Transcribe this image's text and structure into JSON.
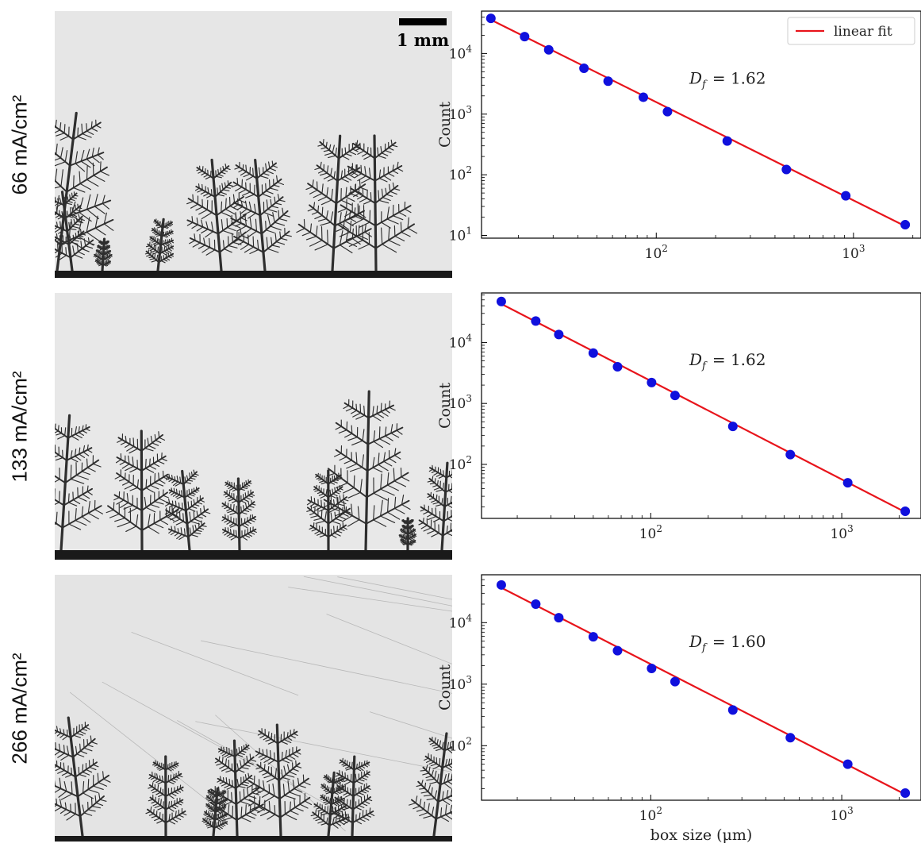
{
  "scale_bar": {
    "label": "1 mm"
  },
  "rows": [
    {
      "label": "66 mA/cm²"
    },
    {
      "label": "133 mA/cm²"
    },
    {
      "label": "266 mA/cm²"
    }
  ],
  "chart_data": [
    {
      "type": "scatter",
      "title": "",
      "xlabel": "",
      "ylabel": "Count",
      "xscale": "log",
      "yscale": "log",
      "xlim": [
        13,
        2200
      ],
      "ylim": [
        9,
        50000
      ],
      "x_ticks": [
        {
          "value": 100,
          "base": "10",
          "exp": "2"
        },
        {
          "value": 1000,
          "base": "10",
          "exp": "3"
        }
      ],
      "y_ticks": [
        {
          "value": 10,
          "base": "10",
          "exp": "1"
        },
        {
          "value": 100,
          "base": "10",
          "exp": "2"
        },
        {
          "value": 1000,
          "base": "10",
          "exp": "3"
        },
        {
          "value": 10000,
          "base": "10",
          "exp": "4"
        }
      ],
      "annotation": {
        "symbol": "D",
        "subscript": "f",
        "value": "= 1.62"
      },
      "legend": {
        "entries": [
          "linear fit"
        ],
        "position": "top-right"
      },
      "series": [
        {
          "type": "scatter",
          "color": "#1010dd",
          "x": [
            14.5,
            21.5,
            28.5,
            43,
            57,
            86,
            114,
            229,
            457,
            914,
            1830
          ],
          "y": [
            38000,
            19000,
            11500,
            5700,
            3500,
            1900,
            1100,
            360,
            122,
            45,
            15
          ]
        },
        {
          "name": "linear fit",
          "type": "line",
          "color": "#e8141b",
          "x": [
            14.5,
            1830
          ],
          "y": [
            36000,
            14.2
          ]
        }
      ]
    },
    {
      "type": "scatter",
      "title": "",
      "xlabel": "",
      "ylabel": "Count",
      "xscale": "log",
      "yscale": "log",
      "xlim": [
        13,
        2600
      ],
      "ylim": [
        13,
        65000
      ],
      "x_ticks": [
        {
          "value": 100,
          "base": "10",
          "exp": "2"
        },
        {
          "value": 1000,
          "base": "10",
          "exp": "3"
        }
      ],
      "y_ticks": [
        {
          "value": 100,
          "base": "10",
          "exp": "2"
        },
        {
          "value": 1000,
          "base": "10",
          "exp": "3"
        },
        {
          "value": 10000,
          "base": "10",
          "exp": "4"
        }
      ],
      "annotation": {
        "symbol": "D",
        "subscript": "f",
        "value": "= 1.62"
      },
      "series": [
        {
          "type": "scatter",
          "color": "#1010dd",
          "x": [
            16.5,
            25,
            33,
            50,
            67,
            101,
            134,
            269,
            538,
            1075,
            2150
          ],
          "y": [
            47000,
            22500,
            13500,
            6700,
            4000,
            2200,
            1350,
            420,
            145,
            50,
            17
          ]
        },
        {
          "type": "line",
          "color": "#e8141b",
          "x": [
            16.5,
            2150
          ],
          "y": [
            43000,
            16.5
          ]
        }
      ]
    },
    {
      "type": "scatter",
      "title": "",
      "xlabel": "box size (μm)",
      "ylabel": "Count",
      "xscale": "log",
      "yscale": "log",
      "xlim": [
        13,
        2600
      ],
      "ylim": [
        13,
        60000
      ],
      "x_ticks": [
        {
          "value": 100,
          "base": "10",
          "exp": "2"
        },
        {
          "value": 1000,
          "base": "10",
          "exp": "3"
        }
      ],
      "y_ticks": [
        {
          "value": 100,
          "base": "10",
          "exp": "2"
        },
        {
          "value": 1000,
          "base": "10",
          "exp": "3"
        },
        {
          "value": 10000,
          "base": "10",
          "exp": "4"
        }
      ],
      "annotation": {
        "symbol": "D",
        "subscript": "f",
        "value": "= 1.60"
      },
      "series": [
        {
          "type": "scatter",
          "color": "#1010dd",
          "x": [
            16.5,
            25,
            33,
            50,
            67,
            101,
            134,
            269,
            538,
            1075,
            2150
          ],
          "y": [
            41000,
            20000,
            12000,
            5900,
            3500,
            1800,
            1100,
            380,
            135,
            50,
            17
          ]
        },
        {
          "type": "line",
          "color": "#e8141b",
          "x": [
            16.5,
            2150
          ],
          "y": [
            37000,
            16.2
          ]
        }
      ]
    }
  ]
}
